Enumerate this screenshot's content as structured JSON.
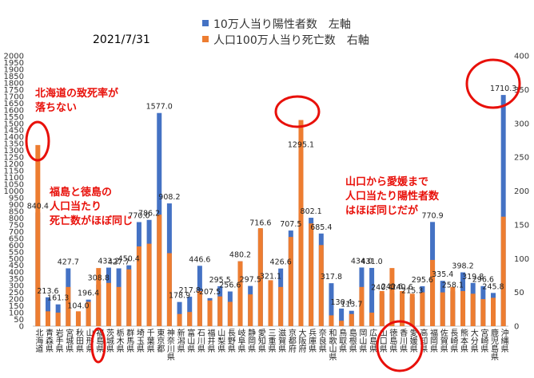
{
  "chart_data": {
    "type": "bar",
    "title": "2021/7/31",
    "legend_position": "top-right",
    "grid": false,
    "series": [
      {
        "name": "10万人当り陽性者数　左軸",
        "axis": "left",
        "color": "#4472c4",
        "values": [
          840.4,
          213.6,
          161.3,
          427.7,
          104.0,
          196.4,
          308.8,
          433.2,
          427.7,
          450.4,
          770.0,
          786.2,
          1577.0,
          908.2,
          178.9,
          217.8,
          446.6,
          207.5,
          295.5,
          256.6,
          480.2,
          297.5,
          716.6,
          321.1,
          426.6,
          707.5,
          1295.1,
          802.1,
          685.4,
          317.8,
          130.4,
          113.7,
          434.0,
          431.0,
          240.4,
          243.6,
          240.6,
          215.3,
          295.6,
          770.9,
          335.4,
          258.1,
          398.2,
          319.8,
          296.6,
          245.8,
          1710.3
        ]
      },
      {
        "name": "人口100万人当り死亡数　右軸",
        "axis": "right",
        "color": "#ed7d31",
        "values": [
          268,
          22,
          20,
          58,
          22,
          36,
          86,
          64,
          58,
          84,
          118,
          122,
          165,
          108,
          18,
          21,
          52,
          38,
          44,
          36,
          96,
          47,
          145,
          68,
          58,
          132,
          305,
          152,
          120,
          16,
          8,
          18,
          58,
          20,
          52,
          86,
          52,
          48,
          50,
          98,
          50,
          58,
          52,
          48,
          40,
          42,
          162
        ]
      }
    ],
    "categories": [
      "北海道",
      "青森県",
      "岩手県",
      "宮城県",
      "秋田県",
      "山形県",
      "福島県",
      "茨城県",
      "栃木県",
      "群馬県",
      "埼玉県",
      "千葉県",
      "東京都",
      "神奈川県",
      "新潟県",
      "富山県",
      "石川県",
      "福井県",
      "山梨県",
      "長野県",
      "岐阜県",
      "静岡県",
      "愛知県",
      "三重県",
      "滋賀県",
      "京都府",
      "大阪府",
      "兵庫県",
      "奈良県",
      "和歌山県",
      "鳥取県",
      "島根県",
      "岡山県",
      "広島県",
      "山口県",
      "徳島県",
      "香川県",
      "愛媛県",
      "高知県",
      "福岡県",
      "佐賀県",
      "長崎県",
      "熊本県",
      "大分県",
      "宮崎県",
      "鹿児島県",
      "沖縄県"
    ],
    "ylim_left": [
      0,
      2000
    ],
    "ylim_right": [
      0,
      400
    ],
    "left_ticks": [
      0,
      50,
      100,
      150,
      200,
      250,
      300,
      350,
      400,
      450,
      500,
      550,
      600,
      650,
      700,
      750,
      800,
      850,
      900,
      950,
      1000,
      1050,
      1100,
      1150,
      1200,
      1250,
      1300,
      1350,
      1400,
      1450,
      1500,
      1550,
      1600,
      1650,
      1700,
      1750,
      1800,
      1850,
      1900,
      1950,
      2000
    ],
    "right_ticks": [
      0,
      50,
      100,
      150,
      200,
      250,
      300,
      350,
      400
    ],
    "annotations": [
      {
        "text": "北海道の致死率が\n落ちない"
      },
      {
        "text": "福島と徳島の\n人口当たり\n死亡数がほぼ同じ"
      },
      {
        "text": "山口から愛媛まで\n人口当たり陽性者数\nはほぼ同じだが"
      }
    ]
  }
}
